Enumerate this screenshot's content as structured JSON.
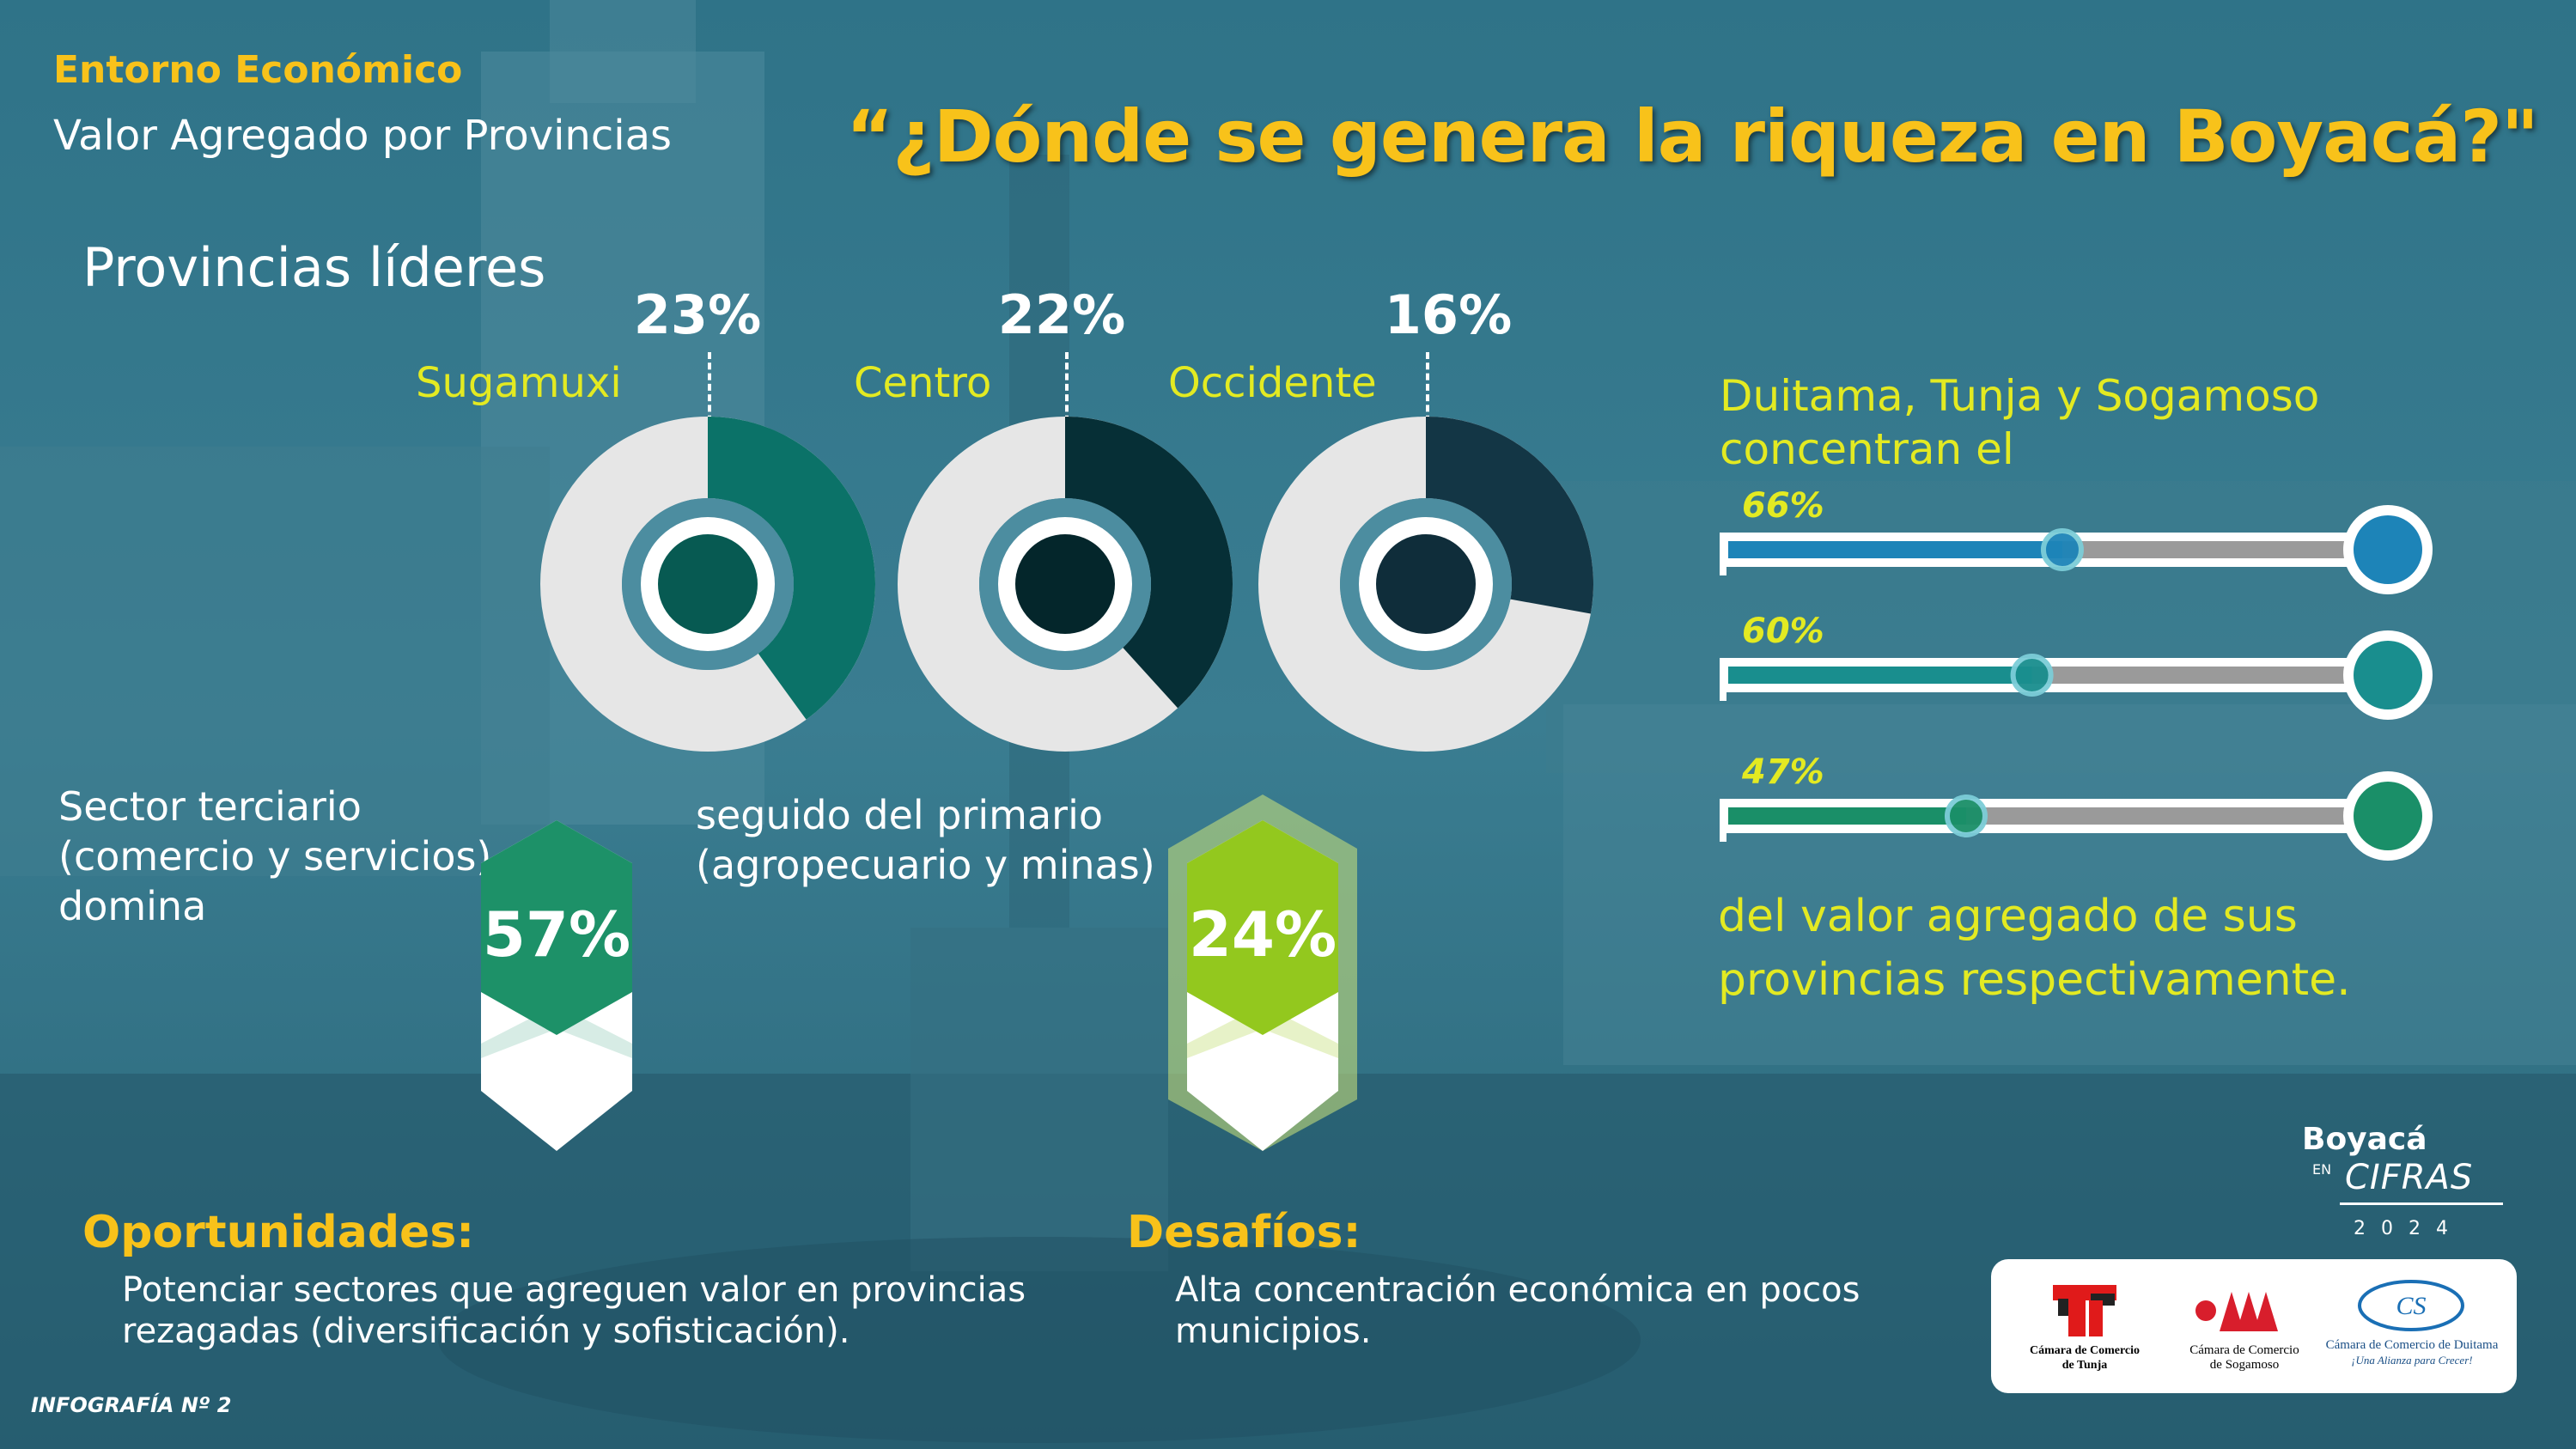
{
  "header": {
    "kicker": "Entorno Económico",
    "subtitle": "Valor Agregado por Provincias",
    "headline": "“¿Dónde se genera la riqueza en Boyacá?\""
  },
  "leaders": {
    "title": "Provincias líderes",
    "items": [
      {
        "name": "Sugamuxi",
        "percent_label": "23%",
        "share": 0.23,
        "color": "#0b7268",
        "center": "#075a52"
      },
      {
        "name": "Centro",
        "percent_label": "22%",
        "share": 0.22,
        "color": "#062f36",
        "center": "#04262b"
      },
      {
        "name": "Occidente",
        "percent_label": "16%",
        "share": 0.16,
        "color": "#133645",
        "center": "#0f2d3a"
      }
    ]
  },
  "concentration": {
    "intro": "Duitama, Tunja y Sogamoso concentran el",
    "outro": "del valor agregado de sus provincias respectivamente.",
    "bars": [
      {
        "label": "66%",
        "value": 0.66,
        "color": "#1d84b8"
      },
      {
        "label": "60%",
        "value": 0.6,
        "color": "#198e8e"
      },
      {
        "label": "47%",
        "value": 0.47,
        "color": "#1a8f68"
      }
    ]
  },
  "sectors": {
    "tertiary_text": [
      "Sector terciario",
      "(comercio y servicios)",
      "domina"
    ],
    "tertiary_value": "57%",
    "tertiary_color": "#1d9168",
    "primary_text": [
      "seguido del primario",
      "(agropecuario y minas)"
    ],
    "primary_value": "24%",
    "primary_color": "#93c81e"
  },
  "opportunities": {
    "title": "Oportunidades:",
    "text": [
      "Potenciar sectores que agreguen valor en provincias",
      "rezagadas (diversificación y sofisticación)."
    ]
  },
  "challenges": {
    "title": "Desafíos:",
    "text": [
      "Alta concentración económica en pocos",
      "municipios."
    ]
  },
  "footer": {
    "infografia": "INFOGRAFÍA Nº 2"
  },
  "brand": {
    "line1": "Boyacá",
    "line2": "EN",
    "line3": "CIFRAS",
    "year": "2024"
  },
  "logos": {
    "tunja": [
      "Cámara de Comercio",
      "de Tunja"
    ],
    "sogamoso": [
      "Cámara de Comercio",
      "de Sogamoso"
    ],
    "duitama": [
      "Cámara de Comercio de Duitama",
      "¡Una Alianza para Crecer!"
    ]
  }
}
